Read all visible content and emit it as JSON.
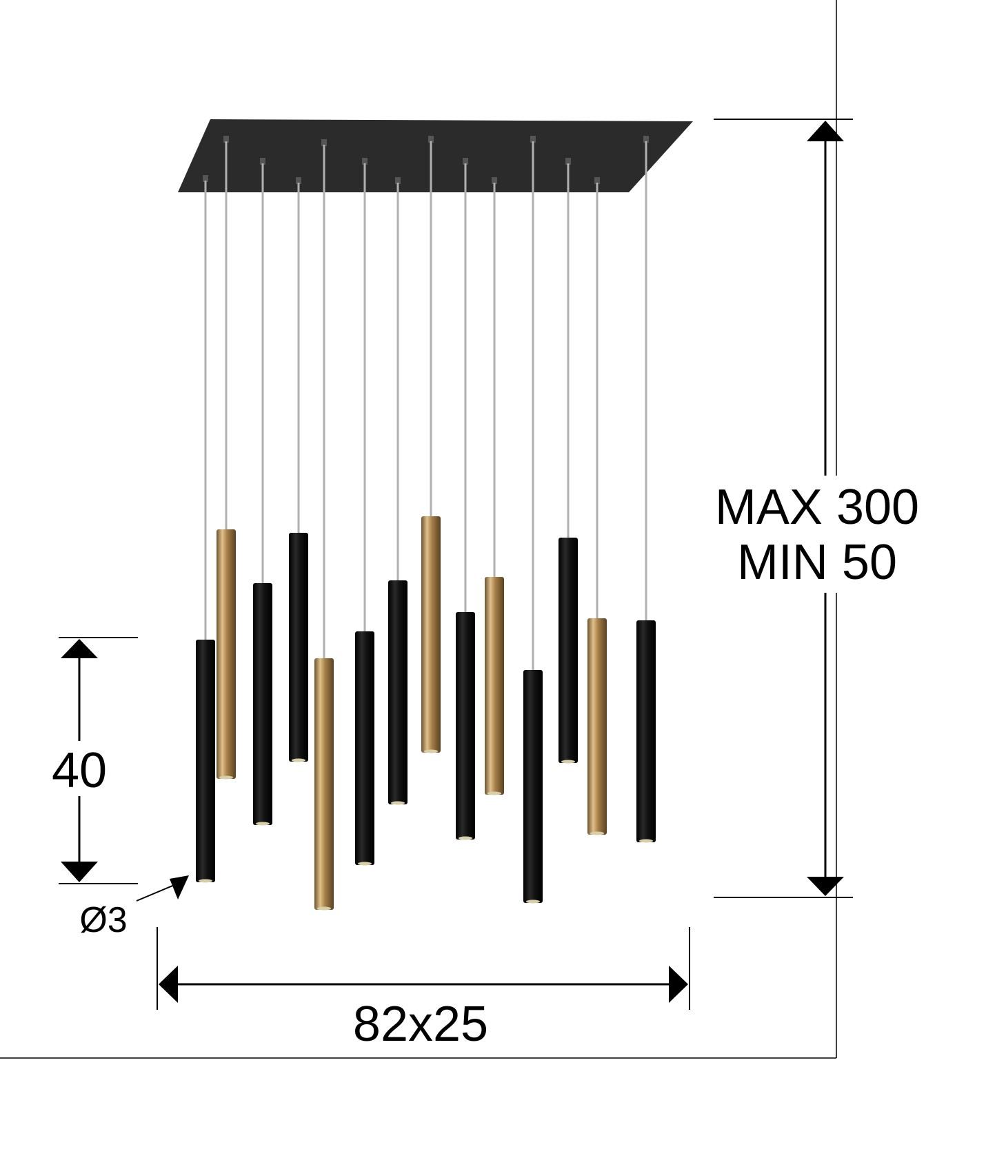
{
  "dimensions": {
    "height_max": "MAX 300",
    "height_min": "MIN 50",
    "tube_length": "40",
    "tube_diameter": "Ø3",
    "canopy_size": "82x25"
  },
  "colors": {
    "canopy": "#2b2b2b",
    "tube_black": "#111111",
    "tube_gold": "#b8935a",
    "cable": "#b0b0b0",
    "line": "#000000"
  },
  "pendants": [
    {
      "finish": "black"
    },
    {
      "finish": "gold"
    },
    {
      "finish": "black"
    },
    {
      "finish": "black"
    },
    {
      "finish": "gold"
    },
    {
      "finish": "black"
    },
    {
      "finish": "black"
    },
    {
      "finish": "gold"
    },
    {
      "finish": "black"
    },
    {
      "finish": "gold"
    },
    {
      "finish": "black"
    },
    {
      "finish": "black"
    },
    {
      "finish": "gold"
    },
    {
      "finish": "black"
    }
  ]
}
